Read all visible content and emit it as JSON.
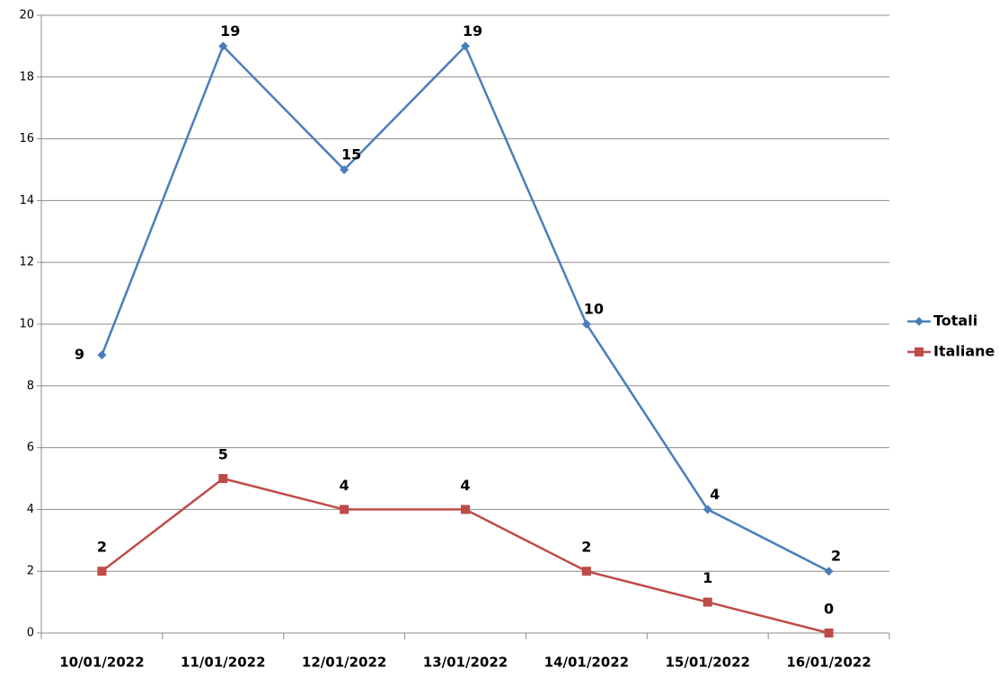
{
  "chart_data": {
    "type": "line",
    "categories": [
      "10/01/2022",
      "11/01/2022",
      "12/01/2022",
      "13/01/2022",
      "14/01/2022",
      "15/01/2022",
      "16/01/2022"
    ],
    "series": [
      {
        "name": "Totali",
        "color": "#4a7ebb",
        "marker": "diamond",
        "values": [
          9,
          19,
          15,
          19,
          10,
          4,
          2
        ]
      },
      {
        "name": "Italiane",
        "color": "#be4b48",
        "marker": "square",
        "values": [
          2,
          5,
          4,
          4,
          2,
          1,
          0
        ]
      }
    ],
    "ylim": [
      0,
      20
    ],
    "yticks": [
      0,
      2,
      4,
      6,
      8,
      10,
      12,
      14,
      16,
      18,
      20
    ],
    "grid": true,
    "legend": "right"
  }
}
